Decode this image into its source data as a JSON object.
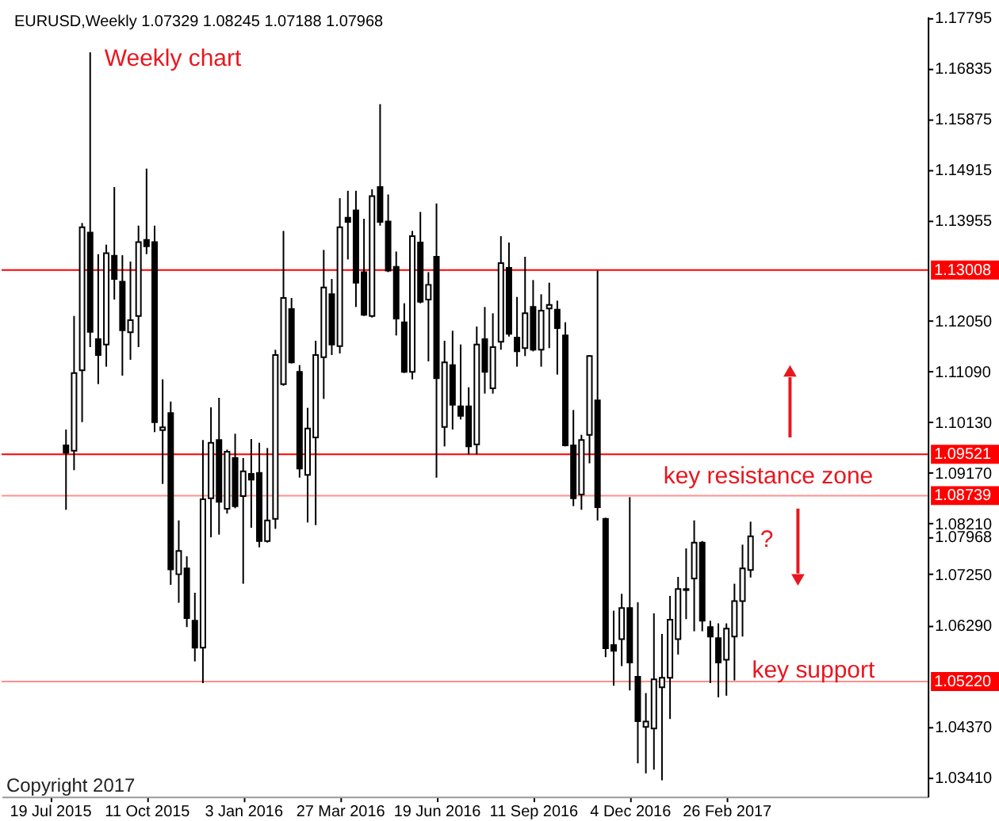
{
  "chart_data": {
    "type": "candlestick",
    "title": "EURUSD,Weekly 1.07329 1.08245 1.07188 1.07968",
    "x": [
      "2015-08-02",
      "2015-08-09",
      "2015-08-16",
      "2015-08-23",
      "2015-08-30",
      "2015-09-06",
      "2015-09-13",
      "2015-09-20",
      "2015-09-27",
      "2015-10-04",
      "2015-10-11",
      "2015-10-18",
      "2015-10-25",
      "2015-11-01",
      "2015-11-08",
      "2015-11-15",
      "2015-11-22",
      "2015-11-29",
      "2015-12-06",
      "2015-12-13",
      "2015-12-20",
      "2015-12-27",
      "2016-01-03",
      "2016-01-10",
      "2016-01-17",
      "2016-01-24",
      "2016-01-31",
      "2016-02-07",
      "2016-02-14",
      "2016-02-21",
      "2016-02-28",
      "2016-03-06",
      "2016-03-13",
      "2016-03-20",
      "2016-03-27",
      "2016-04-03",
      "2016-04-10",
      "2016-04-17",
      "2016-04-24",
      "2016-05-01",
      "2016-05-08",
      "2016-05-15",
      "2016-05-22",
      "2016-05-29",
      "2016-06-05",
      "2016-06-12",
      "2016-06-19",
      "2016-06-26",
      "2016-07-03",
      "2016-07-10",
      "2016-07-17",
      "2016-07-24",
      "2016-07-31",
      "2016-08-07",
      "2016-08-14",
      "2016-08-21",
      "2016-08-28",
      "2016-09-04",
      "2016-09-11",
      "2016-09-18",
      "2016-09-25",
      "2016-10-02",
      "2016-10-09",
      "2016-10-16",
      "2016-10-23",
      "2016-10-30",
      "2016-11-06",
      "2016-11-13",
      "2016-11-20",
      "2016-11-27",
      "2016-12-04",
      "2016-12-11",
      "2016-12-18",
      "2016-12-25",
      "2017-01-01",
      "2017-01-08",
      "2017-01-15",
      "2017-01-22",
      "2017-01-29",
      "2017-02-05",
      "2017-02-12",
      "2017-02-19",
      "2017-02-26",
      "2017-03-05",
      "2017-03-12",
      "2017-03-19"
    ],
    "ohlc": [
      [
        1.0969,
        1.0999,
        1.0847,
        1.0955
      ],
      [
        1.0959,
        1.1214,
        1.0922,
        1.1106
      ],
      [
        1.1111,
        1.139,
        1.1013,
        1.1382
      ],
      [
        1.1372,
        1.1713,
        1.1155,
        1.1184
      ],
      [
        1.117,
        1.1331,
        1.1085,
        1.114
      ],
      [
        1.116,
        1.1349,
        1.1118,
        1.1333
      ],
      [
        1.1328,
        1.1458,
        1.1245,
        1.1284
      ],
      [
        1.1279,
        1.1329,
        1.1101,
        1.1187
      ],
      [
        1.1183,
        1.1317,
        1.1131,
        1.1206
      ],
      [
        1.1214,
        1.1385,
        1.1155,
        1.1354
      ],
      [
        1.1358,
        1.1493,
        1.1331,
        1.1346
      ],
      [
        1.1354,
        1.1385,
        1.0994,
        1.1013
      ],
      [
        1.0998,
        1.1094,
        1.0896,
        1.1003
      ],
      [
        1.103,
        1.1052,
        1.0705,
        1.0734
      ],
      [
        1.0725,
        1.0827,
        1.0671,
        1.0769
      ],
      [
        1.0736,
        1.0759,
        1.0625,
        1.0642
      ],
      [
        1.0637,
        1.069,
        1.056,
        1.0586
      ],
      [
        1.0586,
        1.0979,
        1.0519,
        1.0867
      ],
      [
        1.0869,
        1.1041,
        1.0795,
        1.0974
      ],
      [
        1.0979,
        1.1059,
        1.08,
        1.0862
      ],
      [
        1.0849,
        1.0961,
        1.084,
        1.0957
      ],
      [
        1.0945,
        1.0991,
        1.085,
        1.0854
      ],
      [
        1.0873,
        1.0945,
        1.0707,
        1.092
      ],
      [
        1.0915,
        1.0981,
        1.0813,
        1.0904
      ],
      [
        1.0917,
        1.0974,
        1.0776,
        1.0788
      ],
      [
        1.0788,
        1.0964,
        1.0785,
        1.0827
      ],
      [
        1.083,
        1.115,
        1.0811,
        1.114
      ],
      [
        1.1085,
        1.1375,
        1.1082,
        1.1248
      ],
      [
        1.1227,
        1.1248,
        1.1124,
        1.1126
      ],
      [
        1.1108,
        1.1121,
        1.0908,
        1.0925
      ],
      [
        1.0913,
        1.104,
        1.0823,
        1.1001
      ],
      [
        1.0984,
        1.1167,
        1.0818,
        1.114
      ],
      [
        1.1136,
        1.1339,
        1.1057,
        1.1268
      ],
      [
        1.1255,
        1.1284,
        1.114,
        1.116
      ],
      [
        1.1157,
        1.1437,
        1.1143,
        1.1382
      ],
      [
        1.14,
        1.1451,
        1.1321,
        1.1392
      ],
      [
        1.1414,
        1.1451,
        1.1231,
        1.1277
      ],
      [
        1.1297,
        1.1398,
        1.1214,
        1.1216
      ],
      [
        1.1214,
        1.1454,
        1.1211,
        1.1441
      ],
      [
        1.1458,
        1.1615,
        1.1385,
        1.1392
      ],
      [
        1.1393,
        1.1444,
        1.1297,
        1.13
      ],
      [
        1.1307,
        1.1336,
        1.1177,
        1.1209
      ],
      [
        1.1202,
        1.1238,
        1.1106,
        1.1108
      ],
      [
        1.1108,
        1.1375,
        1.1094,
        1.1365
      ],
      [
        1.1353,
        1.1411,
        1.1238,
        1.1241
      ],
      [
        1.1245,
        1.1297,
        1.1128,
        1.1273
      ],
      [
        1.1326,
        1.1427,
        1.0908,
        1.1096
      ],
      [
        1.1004,
        1.1167,
        1.0967,
        1.1126
      ],
      [
        1.1121,
        1.1186,
        1.0999,
        1.1046
      ],
      [
        1.1043,
        1.116,
        1.1018,
        1.1025
      ],
      [
        1.1043,
        1.1079,
        1.0952,
        1.0967
      ],
      [
        1.0971,
        1.1194,
        1.0952,
        1.116
      ],
      [
        1.117,
        1.1231,
        1.1067,
        1.1108
      ],
      [
        1.1077,
        1.1219,
        1.1067,
        1.1155
      ],
      [
        1.1165,
        1.1365,
        1.115,
        1.1314
      ],
      [
        1.1305,
        1.1353,
        1.1175,
        1.118
      ],
      [
        1.1173,
        1.125,
        1.1118,
        1.1147
      ],
      [
        1.1153,
        1.1326,
        1.1138,
        1.1219
      ],
      [
        1.1231,
        1.1282,
        1.1147,
        1.115
      ],
      [
        1.115,
        1.1255,
        1.1118,
        1.1224
      ],
      [
        1.1228,
        1.1277,
        1.1153,
        1.1235
      ],
      [
        1.1226,
        1.1243,
        1.1103,
        1.1191
      ],
      [
        1.1177,
        1.1202,
        1.0967,
        1.0969
      ],
      [
        1.0969,
        1.1036,
        1.0854,
        1.0869
      ],
      [
        1.0876,
        1.0989,
        1.0847,
        1.0979
      ],
      [
        1.0989,
        1.114,
        1.0935,
        1.1138
      ],
      [
        1.1054,
        1.13,
        1.0827,
        1.0852
      ],
      [
        1.083,
        1.0832,
        1.0568,
        1.0585
      ],
      [
        1.0591,
        1.0656,
        1.0514,
        1.058
      ],
      [
        1.0602,
        1.0688,
        1.0551,
        1.0661
      ],
      [
        1.0661,
        1.0871,
        1.0505,
        1.0558
      ],
      [
        1.0531,
        1.0672,
        1.0367,
        1.0447
      ],
      [
        1.0436,
        1.05,
        1.0348,
        1.0446
      ],
      [
        1.0433,
        1.0651,
        1.0355,
        1.0526
      ],
      [
        1.0511,
        1.0612,
        1.0335,
        1.0529
      ],
      [
        1.0529,
        1.0684,
        1.0451,
        1.0639
      ],
      [
        1.0602,
        1.072,
        1.0573,
        1.0697
      ],
      [
        1.0697,
        1.0774,
        1.064,
        1.0695
      ],
      [
        1.0717,
        1.0827,
        1.0617,
        1.0785
      ],
      [
        1.0785,
        1.0788,
        1.0617,
        1.0637
      ],
      [
        1.0625,
        1.0637,
        1.0519,
        1.0607
      ],
      [
        1.0604,
        1.0632,
        1.0492,
        1.0558
      ],
      [
        1.0563,
        1.0632,
        1.0495,
        1.0622
      ],
      [
        1.0607,
        1.0707,
        1.0524,
        1.0674
      ],
      [
        1.0674,
        1.0781,
        1.0607,
        1.0736
      ],
      [
        1.07329,
        1.08245,
        1.07188,
        1.07968
      ]
    ],
    "color": "#000000",
    "colors": [
      "#000000",
      "#ffffff",
      "#ffffff",
      "#000000",
      "#000000",
      "#ffffff",
      "#000000",
      "#000000",
      "#ffffff",
      "#ffffff",
      "#000000",
      "#000000",
      "#ffffff",
      "#000000",
      "#ffffff",
      "#000000",
      "#000000",
      "#ffffff",
      "#ffffff",
      "#000000",
      "#ffffff",
      "#000000",
      "#ffffff",
      "#000000",
      "#000000",
      "#ffffff",
      "#ffffff",
      "#ffffff",
      "#000000",
      "#000000",
      "#ffffff",
      "#ffffff",
      "#ffffff",
      "#000000",
      "#ffffff",
      "#000000",
      "#000000",
      "#000000",
      "#ffffff",
      "#000000",
      "#000000",
      "#000000",
      "#000000",
      "#ffffff",
      "#000000",
      "#ffffff",
      "#000000",
      "#ffffff",
      "#000000",
      "#000000",
      "#000000",
      "#ffffff",
      "#000000",
      "#ffffff",
      "#ffffff",
      "#000000",
      "#000000",
      "#ffffff",
      "#000000",
      "#ffffff",
      "#ffffff",
      "#000000",
      "#000000",
      "#000000",
      "#ffffff",
      "#ffffff",
      "#000000",
      "#000000",
      "#000000",
      "#ffffff",
      "#000000",
      "#000000",
      "#ffffff",
      "#ffffff",
      "#ffffff",
      "#ffffff",
      "#ffffff",
      "#000000",
      "#ffffff",
      "#000000",
      "#000000",
      "#000000",
      "#ffffff",
      "#ffffff",
      "#ffffff",
      "#ffffff"
    ],
    "xlim": [
      "2015-06-07",
      "2017-08-20"
    ],
    "xticks": [
      {
        "value": "2015-07-19",
        "label": "19 Jul 2015"
      },
      {
        "value": "2015-10-11",
        "label": "11 Oct 2015"
      },
      {
        "value": "2016-01-03",
        "label": "3 Jan 2016"
      },
      {
        "value": "2016-03-27",
        "label": "27 Mar 2016"
      },
      {
        "value": "2016-06-19",
        "label": "19 Jun 2016"
      },
      {
        "value": "2016-09-11",
        "label": "11 Sep 2016"
      },
      {
        "value": "2016-12-04",
        "label": "4 Dec 2016"
      },
      {
        "value": "2017-02-26",
        "label": "26 Feb 2017"
      }
    ],
    "ylim": [
      1.0304,
      1.1781
    ],
    "yticks": [
      1.17795,
      1.16835,
      1.15875,
      1.14915,
      1.13955,
      {
        "value": 1.1205,
        "label": "1.12050"
      },
      {
        "value": 1.1109,
        "label": "1.11090"
      },
      {
        "value": 1.1013,
        "label": "1.10130"
      },
      {
        "value": 1.0917,
        "label": "1.09170"
      },
      {
        "value": 1.0821,
        "label": "1.08210"
      },
      1.07968,
      {
        "value": 1.0725,
        "label": "1.07250"
      },
      {
        "value": 1.0629,
        "label": "1.06290"
      },
      {
        "value": 1.0437,
        "label": "1.04370"
      },
      {
        "value": 1.0341,
        "label": "1.03410"
      }
    ],
    "ref_lines": [
      {
        "axis": "y",
        "value": 1.13008,
        "label": "1.13008",
        "color": "#ff0000"
      },
      {
        "axis": "y",
        "value": 1.09521,
        "label": "1.09521",
        "color": "#ff0000"
      },
      {
        "axis": "y",
        "value": 1.08739,
        "label": "1.08739",
        "color": "#ff9090"
      },
      {
        "axis": "y",
        "value": 1.0522,
        "label": "1.05220",
        "color": "#ff9090"
      }
    ],
    "annotations": [
      "Weekly chart",
      "key resistance zone",
      {
        "text": "?",
        "x": "2017-03-19",
        "y": 1.0792
      },
      "key support",
      "Copyright 2017"
    ]
  }
}
